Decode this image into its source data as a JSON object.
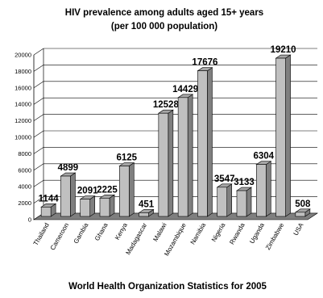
{
  "chart_data": {
    "type": "bar",
    "title": "HIV prevalence among adults aged 15+ years",
    "subtitle": "(per 100 000 population)",
    "footer": "World Health Organization Statistics for 2005",
    "xlabel": "",
    "ylabel": "",
    "ylim": [
      0,
      20000
    ],
    "yticks": [
      "0",
      "2000",
      "4000",
      "6000",
      "8000",
      "10000",
      "12000",
      "14000",
      "16000",
      "18000",
      "20000"
    ],
    "grid": true,
    "legend": "none",
    "categories": [
      "Thailand",
      "Cameroon",
      "Gambia",
      "Ghana",
      "Kenya",
      "Madagascar",
      "Malawi",
      "Mozambique",
      "Namibia",
      "Nigeria",
      "Rwanda",
      "Uganda",
      "Zimbabwe",
      "USA"
    ],
    "values": [
      1144,
      4899,
      2091,
      2225,
      6125,
      451,
      12528,
      14429,
      17676,
      3547,
      3133,
      6304,
      19210,
      508
    ],
    "colors": {
      "bar_front": "#c0c0c0",
      "bar_side": "#7f7f7f",
      "bar_top": "#a6a6a6",
      "floor": "#7f7f7f",
      "grid": "#000000"
    }
  }
}
